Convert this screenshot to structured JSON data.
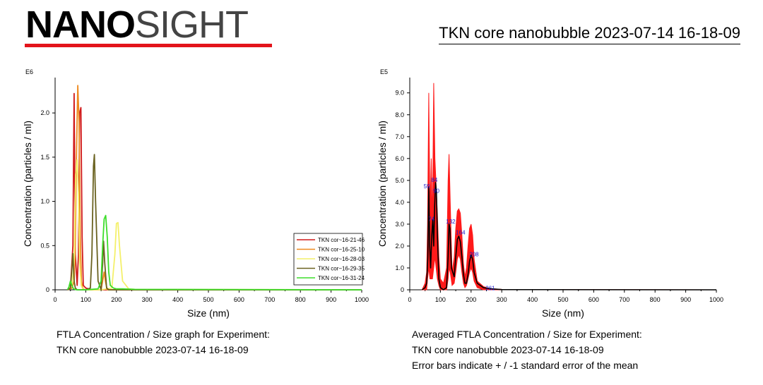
{
  "header": {
    "logo_bold": "NANO",
    "logo_light": "SIGHT",
    "experiment_title": "TKN core nanobubble 2023-07-14 16-18-09",
    "colors": {
      "logo_bar": "#e3141b"
    }
  },
  "captions": {
    "left": {
      "line1": "FTLA Concentration / Size graph for Experiment:",
      "line2": "TKN core nanobubble 2023-07-14 16-18-09"
    },
    "right": {
      "line1": "Averaged FTLA Concentration / Size for Experiment:",
      "line2": "TKN core nanobubble 2023-07-14 16-18-09",
      "line3": "Error bars indicate + / -1 standard error of the mean"
    }
  },
  "chart_data": [
    {
      "type": "line",
      "multiplier_label": "E6",
      "xlabel": "Size (nm)",
      "ylabel": "Concentration (particles / ml)",
      "xlim": [
        0,
        1000
      ],
      "ylim": [
        0,
        2.4
      ],
      "xticks": [
        0,
        100,
        200,
        300,
        400,
        500,
        600,
        700,
        800,
        900,
        1000
      ],
      "yticks": [
        0,
        0.5,
        1.0,
        1.5,
        2.0
      ],
      "ytick_labels": [
        "0",
        "0.5",
        "1.0",
        "1.5",
        "2.0"
      ],
      "grid": false,
      "legend_position": "right",
      "series": [
        {
          "name": "TKN cor~16-21-46",
          "color": "#d11a1a",
          "x": [
            40,
            50,
            58,
            62,
            66,
            72,
            76,
            80,
            84,
            88,
            92,
            100,
            120,
            140,
            160,
            180,
            200,
            250,
            300,
            1000
          ],
          "y": [
            0,
            0.02,
            0.5,
            2.22,
            0.4,
            0.05,
            0.4,
            2.0,
            2.06,
            0.6,
            0.05,
            0.02,
            0,
            0,
            0,
            0,
            0,
            0,
            0,
            0
          ]
        },
        {
          "name": "TKN cor~16-25-10",
          "color": "#ef8a1f",
          "x": [
            40,
            55,
            62,
            66,
            70,
            74,
            78,
            82,
            86,
            90,
            96,
            110,
            150,
            155,
            160,
            165,
            170,
            200,
            300,
            1000
          ],
          "y": [
            0,
            0.02,
            0.1,
            0.5,
            1.6,
            2.31,
            1.9,
            0.6,
            0.1,
            0.02,
            0,
            0,
            0,
            0.1,
            0.2,
            0.08,
            0,
            0,
            0,
            0
          ]
        },
        {
          "name": "TKN cor~16-28-03",
          "color": "#f4f06a",
          "x": [
            40,
            55,
            62,
            67,
            72,
            76,
            80,
            85,
            90,
            100,
            150,
            185,
            195,
            200,
            205,
            210,
            220,
            240,
            260,
            1000
          ],
          "y": [
            0,
            0.05,
            0.3,
            1.3,
            1.47,
            1.1,
            0.3,
            0.05,
            0.01,
            0,
            0,
            0.02,
            0.4,
            0.75,
            0.76,
            0.5,
            0.1,
            0.01,
            0.005,
            0
          ]
        },
        {
          "name": "TKN cor~16-29-35",
          "color": "#6a6220",
          "x": [
            40,
            50,
            55,
            58,
            62,
            66,
            72,
            80,
            100,
            115,
            120,
            125,
            128,
            132,
            140,
            150,
            155,
            158,
            162,
            168,
            175,
            200,
            1000
          ],
          "y": [
            0,
            0.02,
            0.25,
            0.41,
            0.1,
            0.02,
            0,
            0,
            0,
            0.02,
            0.4,
            1.4,
            1.53,
            1.0,
            0.1,
            0,
            0.3,
            0.55,
            0.3,
            0.02,
            0,
            0,
            0
          ]
        },
        {
          "name": "TKN cor~16-31-24",
          "color": "#3ddd2b",
          "x": [
            40,
            45,
            50,
            55,
            60,
            70,
            100,
            140,
            150,
            155,
            160,
            165,
            170,
            175,
            180,
            190,
            200,
            220,
            260,
            1000
          ],
          "y": [
            0,
            0.03,
            0.1,
            0.05,
            0.01,
            0,
            0,
            0.01,
            0.1,
            0.5,
            0.8,
            0.84,
            0.6,
            0.2,
            0.05,
            0.02,
            0.01,
            0.01,
            0.005,
            0
          ]
        }
      ]
    },
    {
      "type": "line",
      "multiplier_label": "E5",
      "xlabel": "Size (nm)",
      "ylabel": "Concentration (particles / ml)",
      "xlim": [
        0,
        1000
      ],
      "ylim": [
        0,
        9.7
      ],
      "xticks": [
        0,
        100,
        200,
        300,
        400,
        500,
        600,
        700,
        800,
        900,
        1000
      ],
      "yticks": [
        0,
        1,
        2,
        3,
        4,
        5,
        6,
        7,
        8,
        9
      ],
      "ytick_labels": [
        "0",
        "1.0",
        "2.0",
        "3.0",
        "4.0",
        "5.0",
        "6.0",
        "7.0",
        "8.0",
        "9.0"
      ],
      "grid": false,
      "colors": {
        "error_band": "#ff1a1a",
        "mean_line": "#000000",
        "peak_label": "#1a1acc"
      },
      "error_band": {
        "x": [
          40,
          50,
          55,
          58,
          62,
          66,
          70,
          74,
          78,
          82,
          86,
          90,
          95,
          100,
          110,
          120,
          125,
          128,
          132,
          138,
          145,
          150,
          155,
          160,
          165,
          170,
          175,
          180,
          185,
          190,
          195,
          200,
          205,
          210,
          220,
          240,
          260,
          300,
          1000
        ],
        "upper": [
          0,
          0.3,
          0.8,
          3.0,
          9.0,
          3.5,
          6.0,
          3.0,
          9.45,
          6.0,
          4.8,
          3.5,
          1.5,
          0.5,
          0.3,
          1.0,
          5.0,
          6.2,
          4.0,
          0.8,
          1.5,
          2.8,
          3.6,
          3.7,
          3.5,
          2.5,
          1.2,
          0.6,
          1.0,
          2.0,
          2.8,
          3.0,
          2.5,
          1.4,
          0.4,
          0.15,
          0.05,
          0.02,
          0
        ],
        "lower": [
          0,
          0,
          0,
          0.5,
          1.0,
          0.5,
          0.5,
          0.5,
          1.0,
          1.5,
          1.0,
          0.5,
          0.2,
          0,
          0,
          0,
          0.5,
          1.0,
          0.8,
          0.2,
          0.3,
          0.8,
          1.4,
          1.6,
          1.4,
          0.8,
          0.3,
          0.1,
          0.2,
          0.5,
          0.8,
          1.0,
          0.8,
          0.4,
          0.1,
          0,
          0,
          0,
          0
        ]
      },
      "mean": {
        "x": [
          40,
          50,
          55,
          59,
          62,
          65,
          68,
          72,
          75,
          78,
          81,
          84,
          87,
          90,
          95,
          100,
          110,
          120,
          125,
          128,
          131,
          136,
          145,
          150,
          155,
          160,
          165,
          170,
          175,
          180,
          185,
          190,
          195,
          200,
          205,
          210,
          220,
          240,
          261,
          300,
          1000
        ],
        "y": [
          0,
          0.1,
          0.3,
          1.5,
          4.7,
          2.0,
          1.0,
          2.5,
          3.2,
          2.0,
          3.8,
          4.9,
          4.4,
          2.5,
          0.5,
          0.1,
          0,
          0.1,
          1.5,
          3.0,
          2.8,
          1.0,
          0.6,
          1.5,
          2.3,
          2.45,
          2.2,
          1.5,
          0.7,
          0.3,
          0.3,
          0.7,
          1.3,
          1.6,
          1.4,
          0.8,
          0.3,
          0.1,
          0.05,
          0.01,
          0
        ]
      },
      "peak_labels": [
        {
          "x": 59,
          "y": 4.7,
          "label": "59"
        },
        {
          "x": 74,
          "y": 3.2,
          "label": "74"
        },
        {
          "x": 84,
          "y": 5.0,
          "label": "84"
        },
        {
          "x": 90,
          "y": 4.5,
          "label": "90"
        },
        {
          "x": 132,
          "y": 3.1,
          "label": "132"
        },
        {
          "x": 164,
          "y": 2.6,
          "label": "164"
        },
        {
          "x": 208,
          "y": 1.6,
          "label": "208"
        },
        {
          "x": 261,
          "y": 0.05,
          "label": "261"
        }
      ]
    }
  ]
}
